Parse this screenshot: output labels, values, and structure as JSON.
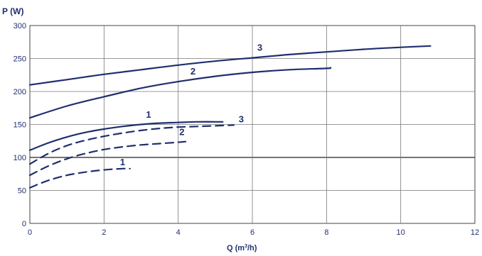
{
  "chart_data": {
    "type": "line",
    "ylabel": "P (W)",
    "xlabel_main": "Q (m",
    "xlabel_sup": "3",
    "xlabel_tail": "/h)",
    "xlim": [
      0,
      12
    ],
    "ylim": [
      0,
      300
    ],
    "x_ticks": [
      "0",
      "2",
      "4",
      "6",
      "8",
      "10",
      "12"
    ],
    "y_ticks": [
      "0",
      "50",
      "100",
      "150",
      "200",
      "250",
      "300"
    ],
    "grid": true,
    "bold_gridline_y": 100,
    "colors": {
      "line": "#1f2f6e",
      "grid": "#444444",
      "axis_text": "#1f2f6e"
    },
    "series": [
      {
        "label": "3",
        "style": "solid",
        "x": [
          0,
          1,
          2,
          3,
          4,
          5,
          6,
          7,
          8,
          9,
          10,
          10.8
        ],
        "y": [
          210,
          218,
          226,
          233,
          240,
          246,
          251,
          256,
          260,
          264,
          267,
          269
        ],
        "label_pos": [
          6.2,
          262
        ]
      },
      {
        "label": "2",
        "style": "solid",
        "x": [
          0,
          1,
          2,
          3,
          4,
          5,
          6,
          7,
          8,
          8.1
        ],
        "y": [
          160,
          178,
          192,
          205,
          215,
          223,
          229,
          233,
          235,
          236
        ],
        "label_pos": [
          4.4,
          226
        ]
      },
      {
        "label": "1",
        "style": "solid",
        "x": [
          0,
          0.5,
          1,
          1.5,
          2,
          2.5,
          3,
          3.5,
          4,
          4.5,
          5,
          5.2
        ],
        "y": [
          111,
          122,
          131,
          138,
          143,
          147,
          150,
          152,
          153,
          154,
          154,
          154
        ],
        "label_pos": [
          3.2,
          160
        ]
      },
      {
        "label": "3",
        "style": "dashed",
        "x": [
          0,
          0.5,
          1,
          1.5,
          2,
          2.5,
          3,
          3.5,
          4,
          4.5,
          5,
          5.5
        ],
        "y": [
          90,
          106,
          118,
          126,
          132,
          137,
          141,
          144,
          146,
          147,
          148,
          149
        ],
        "label_pos": [
          5.7,
          153
        ]
      },
      {
        "label": "2",
        "style": "dashed",
        "x": [
          0,
          0.5,
          1,
          1.5,
          2,
          2.5,
          3,
          3.5,
          4,
          4.2
        ],
        "y": [
          73,
          87,
          98,
          106,
          112,
          116,
          119,
          121,
          123,
          124
        ],
        "label_pos": [
          4.1,
          134
        ]
      },
      {
        "label": "1",
        "style": "dashed",
        "x": [
          0,
          0.3,
          0.6,
          1,
          1.4,
          1.8,
          2.2,
          2.5,
          2.7
        ],
        "y": [
          54,
          61,
          67,
          73,
          77,
          80,
          82,
          83,
          83
        ],
        "label_pos": [
          2.5,
          88
        ]
      }
    ]
  }
}
